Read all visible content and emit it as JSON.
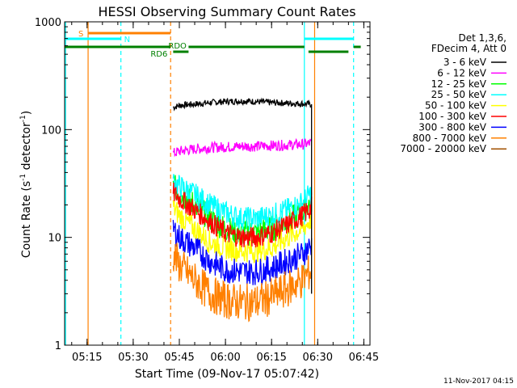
{
  "chart_data": {
    "type": "line",
    "title": "HESSI Observing Summary Count Rates",
    "xlabel": "Start Time (09-Nov-17 05:07:42)",
    "ylabel": "Count Rate (s⁻¹ detector⁻¹)",
    "y_scale": "log",
    "ylim": [
      1,
      1000
    ],
    "xlim": [
      "05:07:42",
      "06:47:00"
    ],
    "x_ticks": [
      "05:15",
      "05:30",
      "05:45",
      "06:00",
      "06:15",
      "06:30",
      "06:45"
    ],
    "y_ticks": [
      "1",
      "10",
      "100",
      "1000"
    ],
    "legend_header": [
      "Det 1,3,6,",
      "FDecim 4, Att 0"
    ],
    "footer": "11-Nov-2017 04:15",
    "series": [
      {
        "name": "3 - 6 keV",
        "color": "#000000",
        "x": [
          "05:43",
          "05:45",
          "05:50",
          "05:55",
          "06:00",
          "06:05",
          "06:10",
          "06:15",
          "06:20",
          "06:25",
          "06:28"
        ],
        "values": [
          160,
          168,
          172,
          178,
          182,
          184,
          182,
          178,
          176,
          174,
          172
        ]
      },
      {
        "name": "6 - 12 keV",
        "color": "#ff00ff",
        "x": [
          "05:43",
          "05:45",
          "05:50",
          "05:55",
          "06:00",
          "06:05",
          "06:10",
          "06:15",
          "06:20",
          "06:25",
          "06:28"
        ],
        "values": [
          60,
          63,
          66,
          68,
          69,
          70,
          70,
          71,
          72,
          73,
          75
        ]
      },
      {
        "name": "12 - 25 keV",
        "color": "#00ff00",
        "x": [
          "05:43",
          "05:45",
          "05:50",
          "05:55",
          "06:00",
          "06:05",
          "06:10",
          "06:15",
          "06:20",
          "06:25",
          "06:28"
        ],
        "values": [
          30,
          26,
          20,
          15,
          12,
          11,
          11,
          12,
          14,
          17,
          22
        ]
      },
      {
        "name": "25 - 50 keV",
        "color": "#00ffff",
        "x": [
          "05:43",
          "05:45",
          "05:50",
          "05:55",
          "06:00",
          "06:05",
          "06:10",
          "06:15",
          "06:20",
          "06:25",
          "06:28"
        ],
        "values": [
          33,
          30,
          25,
          20,
          17,
          15,
          15,
          16,
          18,
          21,
          26
        ]
      },
      {
        "name": "50 - 100 keV",
        "color": "#ffff00",
        "x": [
          "05:43",
          "05:45",
          "05:50",
          "05:55",
          "06:00",
          "06:05",
          "06:10",
          "06:15",
          "06:20",
          "06:25",
          "06:28"
        ],
        "values": [
          19,
          16,
          12,
          9,
          8,
          7.5,
          7.5,
          8,
          10,
          12,
          15
        ]
      },
      {
        "name": "100 - 300 keV",
        "color": "#ff0000",
        "x": [
          "05:43",
          "05:45",
          "05:50",
          "05:55",
          "06:00",
          "06:05",
          "06:10",
          "06:15",
          "06:20",
          "06:25",
          "06:28"
        ],
        "values": [
          26,
          23,
          18,
          14,
          11,
          10,
          10,
          11,
          13,
          16,
          19
        ]
      },
      {
        "name": "300 - 800 keV",
        "color": "#0000ff",
        "x": [
          "05:43",
          "05:45",
          "05:50",
          "05:55",
          "06:00",
          "06:05",
          "06:10",
          "06:15",
          "06:20",
          "06:25",
          "06:28"
        ],
        "values": [
          12,
          10,
          8,
          6,
          5,
          4.8,
          4.8,
          5.2,
          6,
          7,
          8.5
        ]
      },
      {
        "name": "800 - 7000 keV",
        "color": "#ff8000",
        "x": [
          "05:43",
          "05:45",
          "05:50",
          "05:55",
          "06:00",
          "06:05",
          "06:10",
          "06:15",
          "06:20",
          "06:25",
          "06:28"
        ],
        "values": [
          7,
          5.5,
          4,
          3,
          2.6,
          2.5,
          2.5,
          2.8,
          3.3,
          4,
          5
        ]
      },
      {
        "name": "7000 - 20000 keV",
        "color": "#a05000",
        "x": [
          "05:43",
          "06:28"
        ],
        "values": [
          1,
          1
        ]
      }
    ],
    "annotations": [
      {
        "label": "S",
        "color": "#ff8000"
      },
      {
        "label": "N",
        "color": "#00ffff"
      },
      {
        "label": "RDO",
        "color": "#008000"
      },
      {
        "label": "RD6",
        "color": "#008000"
      }
    ]
  }
}
